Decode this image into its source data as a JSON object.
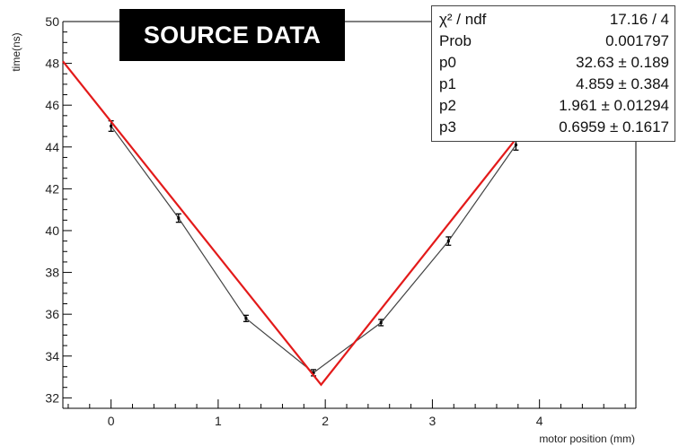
{
  "banner": {
    "label": "SOURCE DATA"
  },
  "chart_data": {
    "type": "line",
    "xlabel": "motor position (mm)",
    "ylabel": "time(ns)",
    "xlim": [
      -0.45,
      4.9
    ],
    "ylim": [
      31.5,
      50
    ],
    "x_ticks": [
      0,
      1,
      2,
      3,
      4
    ],
    "y_ticks": [
      32,
      34,
      36,
      38,
      40,
      42,
      44,
      46,
      48,
      50
    ],
    "grid": false,
    "series": [
      {
        "kind": "measured",
        "style": "line-with-error-bars",
        "color": "#444444",
        "x": [
          0,
          0.63,
          1.26,
          1.89,
          2.52,
          3.15,
          3.78
        ],
        "y": [
          45.0,
          40.6,
          35.8,
          33.2,
          35.6,
          39.5,
          44.1
        ],
        "yerr": [
          0.25,
          0.2,
          0.15,
          0.15,
          0.15,
          0.2,
          0.25
        ]
      },
      {
        "kind": "fit",
        "style": "line",
        "color": "#e31a1a",
        "x": [
          -0.45,
          1.961,
          4.2
        ],
        "y": [
          48.1,
          32.63,
          47.1
        ]
      }
    ],
    "stats_box": [
      {
        "label": "χ² / ndf",
        "value": "17.16 / 4"
      },
      {
        "label": "Prob",
        "value": "0.001797"
      },
      {
        "label": "p0",
        "value": "32.63 ± 0.189"
      },
      {
        "label": "p1",
        "value": "4.859 ± 0.384"
      },
      {
        "label": "p2",
        "value": "1.961 ± 0.01294"
      },
      {
        "label": "p3",
        "value": "0.6959 ± 0.1617"
      }
    ]
  }
}
